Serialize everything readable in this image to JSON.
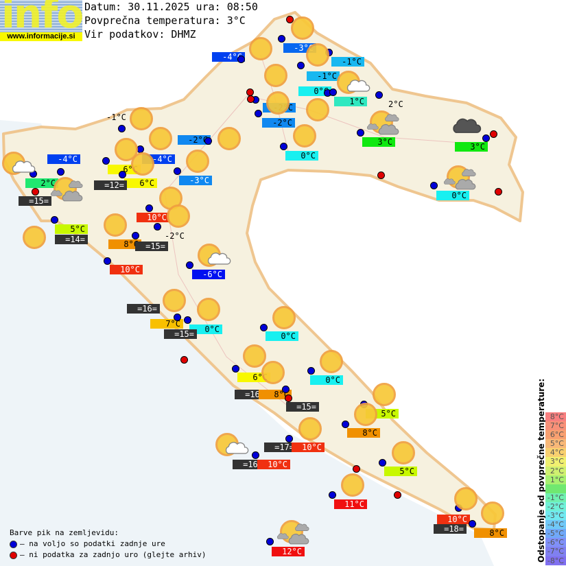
{
  "logo": {
    "text": "info",
    "url": "www.informacije.si"
  },
  "header": {
    "date_line": "Datum: 30.11.2025 ura: 08:50",
    "avg_line": "Povprečna temperatura: 3°C",
    "source_line": "Vir podatkov: DHMZ"
  },
  "labels": [
    {
      "text": "-4°C",
      "bg": "#0040f0",
      "fg": "#fff"
    },
    {
      "text": "-3°C",
      "bg": "#0868f0",
      "fg": "#fff"
    },
    {
      "text": "-1°C",
      "bg": "#18b8f0",
      "fg": "#000"
    },
    {
      "text": "-1°C",
      "bg": "#18b8f0",
      "fg": "#000"
    },
    {
      "text": "0°C",
      "bg": "#18f0f0",
      "fg": "#000"
    },
    {
      "text": "1°C",
      "bg": "#30e8c0",
      "fg": "#000"
    },
    {
      "text": "2°C",
      "bg": "",
      "fg": "#000"
    },
    {
      "text": "-2°C",
      "bg": "#1088f0",
      "fg": "#000"
    },
    {
      "text": "-2°C",
      "bg": "#1088f0",
      "fg": "#000"
    },
    {
      "text": "0°C",
      "bg": "#18f0f0",
      "fg": "#000"
    },
    {
      "text": "3°C",
      "bg": "#10e810",
      "fg": "#000"
    },
    {
      "text": "3°C",
      "bg": "#10e810",
      "fg": "#000"
    },
    {
      "text": "0°C",
      "bg": "#18f0f0",
      "fg": "#000"
    },
    {
      "text": "-1°C",
      "bg": "",
      "fg": "#000"
    },
    {
      "text": "-2°C",
      "bg": "#1088f0",
      "fg": "#000"
    },
    {
      "text": "-4°C",
      "bg": "#0040f0",
      "fg": "#fff"
    },
    {
      "text": "-4°C",
      "bg": "#0040f0",
      "fg": "#fff"
    },
    {
      "text": "6°C",
      "bg": "#f8f800",
      "fg": "#000"
    },
    {
      "text": "6°C",
      "bg": "#f8f800",
      "fg": "#000"
    },
    {
      "text": "=12=",
      "bg": "#333333",
      "fg": "#fff"
    },
    {
      "text": "-3°C",
      "bg": "#1088f0",
      "fg": "#fff"
    },
    {
      "text": "2°C",
      "bg": "#20e870",
      "fg": "#000"
    },
    {
      "text": "=15=",
      "bg": "#333333",
      "fg": "#fff"
    },
    {
      "text": "5°C",
      "bg": "#c8f800",
      "fg": "#000"
    },
    {
      "text": "=14=",
      "bg": "#333333",
      "fg": "#fff"
    },
    {
      "text": "10°C",
      "bg": "#f03010",
      "fg": "#fff"
    },
    {
      "text": "-2°C",
      "bg": "",
      "fg": "#000"
    },
    {
      "text": "8°C",
      "bg": "#f09000",
      "fg": "#000"
    },
    {
      "text": "=15=",
      "bg": "#333333",
      "fg": "#fff"
    },
    {
      "text": "10°C",
      "bg": "#f03010",
      "fg": "#fff"
    },
    {
      "text": "-6°C",
      "bg": "#0010f0",
      "fg": "#fff"
    },
    {
      "text": "=16=",
      "bg": "#333333",
      "fg": "#fff"
    },
    {
      "text": "7°C",
      "bg": "#f8c000",
      "fg": "#000"
    },
    {
      "text": "0°C",
      "bg": "#18f0f0",
      "fg": "#000"
    },
    {
      "text": "=15=",
      "bg": "#333333",
      "fg": "#fff"
    },
    {
      "text": "0°C",
      "bg": "#18f0f0",
      "fg": "#000"
    },
    {
      "text": "6°C",
      "bg": "#f8f800",
      "fg": "#000"
    },
    {
      "text": "0°C",
      "bg": "#18f0f0",
      "fg": "#000"
    },
    {
      "text": "=16=",
      "bg": "#333333",
      "fg": "#fff"
    },
    {
      "text": "8°C",
      "bg": "#f09000",
      "fg": "#000"
    },
    {
      "text": "=15=",
      "bg": "#333333",
      "fg": "#fff"
    },
    {
      "text": "5°C",
      "bg": "#c8f800",
      "fg": "#000"
    },
    {
      "text": "8°C",
      "bg": "#f09000",
      "fg": "#000"
    },
    {
      "text": "=17=",
      "bg": "#333333",
      "fg": "#fff"
    },
    {
      "text": "10°C",
      "bg": "#f03010",
      "fg": "#fff"
    },
    {
      "text": "=16=",
      "bg": "#333333",
      "fg": "#fff"
    },
    {
      "text": "10°C",
      "bg": "#f03010",
      "fg": "#fff"
    },
    {
      "text": "5°C",
      "bg": "#c8f800",
      "fg": "#000"
    },
    {
      "text": "11°C",
      "bg": "#f01010",
      "fg": "#fff"
    },
    {
      "text": "10°C",
      "bg": "#f03010",
      "fg": "#fff"
    },
    {
      "text": "=18=",
      "bg": "#333333",
      "fg": "#fff"
    },
    {
      "text": "8°C",
      "bg": "#f09000",
      "fg": "#000"
    },
    {
      "text": "12°C",
      "bg": "#f01010",
      "fg": "#fff"
    }
  ],
  "station_dots": {
    "colors": {
      "current": "#0000d8",
      "no_data": "#e00000"
    },
    "current_count": 42,
    "no_data_count": 11
  },
  "weather_icons": [
    "sunny",
    "sunny",
    "sunny",
    "partly-cloudy",
    "sunny",
    "sunny",
    "sunny",
    "sunny",
    "sunny",
    "sunny",
    "sunny",
    "sunny",
    "sunny",
    "sunny",
    "partly-cloudy",
    "mostly-cloudy",
    "sunny",
    "sunny",
    "sunny",
    "sunny",
    "partly-cloudy",
    "sunny",
    "sunny",
    "sunny",
    "sunny",
    "sunny",
    "sunny",
    "sunny",
    "sunny",
    "sunny",
    "partly-cloudy",
    "sunny",
    "sunny",
    "sunny",
    "sunny",
    "mostly-cloudy",
    "mostly-cloudy",
    "mostly-cloudy",
    "overcast",
    "partly-cloudy"
  ],
  "legend": {
    "title": "Barve pik na zemljevidu:",
    "blue_text": "– na voljo so podatki zadnje ure",
    "red_text": "– ni podatka za zadnjo uro (glejte arhiv)"
  },
  "scale": {
    "title": "Odstopanje od povprečne temperature:",
    "steps": [
      {
        "text": "8°C",
        "color": "#f88080"
      },
      {
        "text": "7°C",
        "color": "#f89078"
      },
      {
        "text": "6°C",
        "color": "#f8a070"
      },
      {
        "text": "5°C",
        "color": "#f8b878"
      },
      {
        "text": "4°C",
        "color": "#f8d070"
      },
      {
        "text": "3°C",
        "color": "#f0f070"
      },
      {
        "text": "2°C",
        "color": "#d0f070"
      },
      {
        "text": "1°C",
        "color": "#a8f070"
      },
      {
        "text": "",
        "color": "#70e870"
      },
      {
        "text": "-1°C",
        "color": "#70f0b0"
      },
      {
        "text": "-2°C",
        "color": "#70f0d8"
      },
      {
        "text": "-3°C",
        "color": "#70e8f0"
      },
      {
        "text": "-4°C",
        "color": "#70c8f8"
      },
      {
        "text": "-5°C",
        "color": "#70a8f8"
      },
      {
        "text": "-6°C",
        "color": "#8090f8"
      },
      {
        "text": "-7°C",
        "color": "#8080f0"
      },
      {
        "text": "-8°C",
        "color": "#8070f0"
      }
    ]
  }
}
